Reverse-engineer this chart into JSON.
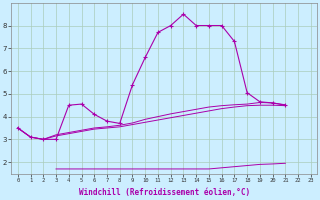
{
  "xlabel": "Windchill (Refroidissement éolien,°C)",
  "ylabel": "",
  "bg_color": "#cceeff",
  "grid_color": "#aaccbb",
  "line_color": "#aa00aa",
  "x_hours": [
    0,
    1,
    2,
    3,
    4,
    5,
    6,
    7,
    8,
    9,
    10,
    11,
    12,
    13,
    14,
    15,
    16,
    17,
    18,
    19,
    20,
    21,
    22,
    23
  ],
  "series1": [
    3.5,
    3.1,
    3.0,
    3.0,
    4.5,
    4.55,
    4.1,
    3.8,
    3.7,
    5.4,
    6.6,
    7.7,
    8.0,
    8.5,
    8.0,
    8.0,
    8.0,
    7.3,
    5.05,
    4.65,
    4.6,
    4.5,
    null,
    null
  ],
  "series2": [
    3.5,
    3.1,
    3.0,
    3.15,
    3.25,
    3.35,
    3.45,
    3.5,
    3.55,
    3.65,
    3.75,
    3.85,
    3.95,
    4.05,
    4.15,
    4.25,
    4.35,
    4.42,
    4.48,
    4.5,
    4.5,
    4.48,
    null,
    null
  ],
  "series3": [
    3.5,
    3.1,
    3.0,
    3.2,
    3.3,
    3.4,
    3.5,
    3.55,
    3.62,
    3.72,
    3.88,
    4.0,
    4.12,
    4.22,
    4.32,
    4.42,
    4.48,
    4.52,
    4.55,
    4.62,
    4.6,
    4.52,
    null,
    null
  ],
  "series4": [
    null,
    null,
    null,
    1.7,
    1.7,
    1.7,
    1.7,
    1.7,
    1.7,
    1.7,
    1.7,
    1.7,
    1.7,
    1.7,
    1.7,
    1.7,
    1.75,
    1.8,
    1.85,
    1.9,
    1.92,
    1.95,
    null,
    null
  ],
  "ylim": [
    1.5,
    9.0
  ],
  "xlim": [
    0,
    23
  ],
  "yticks": [
    2,
    3,
    4,
    5,
    6,
    7,
    8
  ],
  "xticks": [
    0,
    1,
    2,
    3,
    4,
    5,
    6,
    7,
    8,
    9,
    10,
    11,
    12,
    13,
    14,
    15,
    16,
    17,
    18,
    19,
    20,
    21,
    22,
    23
  ]
}
